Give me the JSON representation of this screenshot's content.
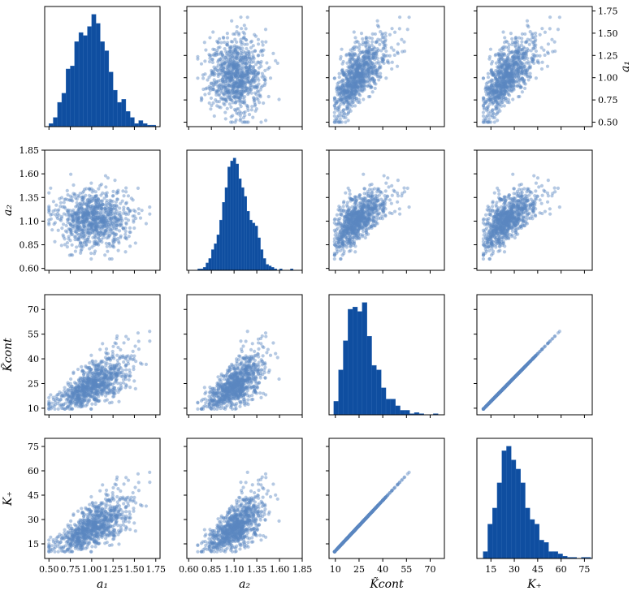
{
  "chart_data": {
    "type": "pairplot",
    "title": "",
    "variables": [
      {
        "key": "a1",
        "label": "a₁",
        "range": [
          0.45,
          1.8
        ],
        "ticks": [
          0.5,
          0.75,
          1.0,
          1.25,
          1.5,
          1.75
        ],
        "tick_labels": [
          "0.50",
          "0.75",
          "1.00",
          "1.25",
          "1.50",
          "1.75"
        ]
      },
      {
        "key": "a2",
        "label": "a₂",
        "range": [
          0.58,
          1.85
        ],
        "ticks": [
          0.6,
          0.85,
          1.1,
          1.35,
          1.6,
          1.85
        ],
        "tick_labels": [
          "0.60",
          "0.85",
          "1.10",
          "1.35",
          "1.60",
          "1.85"
        ]
      },
      {
        "key": "Kcont",
        "label": "K̃cont",
        "range": [
          6,
          79
        ],
        "ticks": [
          10,
          25,
          40,
          55,
          70
        ],
        "tick_labels": [
          "10",
          "25",
          "40",
          "55",
          "70"
        ]
      },
      {
        "key": "Kplus",
        "label": "K₊",
        "range": [
          6,
          80
        ],
        "ticks": [
          15,
          30,
          45,
          60,
          75
        ],
        "tick_labels": [
          "15",
          "30",
          "45",
          "60",
          "75"
        ]
      }
    ],
    "diag_ticks": {
      "0": {
        "ticks": [
          0.5,
          0.75,
          1.0,
          1.25,
          1.5,
          1.75
        ],
        "tick_labels": [
          "0.50",
          "0.75",
          "1.00",
          "1.25",
          "1.50",
          "1.75"
        ]
      },
      "1": {
        "ticks": [
          0.6,
          0.85,
          1.1,
          1.35,
          1.6,
          1.85
        ],
        "tick_labels": [
          "0.60",
          "0.85",
          "1.10",
          "1.35",
          "1.60",
          "1.85"
        ]
      },
      "2": {
        "ticks": [
          10,
          25,
          40,
          55,
          70
        ],
        "tick_labels": [
          "10",
          "25",
          "40",
          "55",
          "70"
        ]
      },
      "3": {
        "ticks": [
          15,
          30,
          45,
          60,
          75
        ],
        "tick_labels": [
          "15",
          "30",
          "45",
          "60",
          "75"
        ]
      }
    },
    "histograms": {
      "a1": {
        "bin_edges": [
          0.5,
          0.55,
          0.6,
          0.65,
          0.7,
          0.75,
          0.8,
          0.85,
          0.9,
          0.95,
          1.0,
          1.05,
          1.1,
          1.15,
          1.2,
          1.25,
          1.3,
          1.35,
          1.4,
          1.45,
          1.5,
          1.55,
          1.6,
          1.65,
          1.7,
          1.75
        ],
        "counts": [
          2,
          6,
          16,
          22,
          38,
          40,
          56,
          62,
          60,
          66,
          74,
          68,
          56,
          50,
          36,
          24,
          16,
          18,
          10,
          6,
          2,
          4,
          2,
          1,
          1
        ]
      },
      "a2": {
        "bin_edges": [
          0.7,
          0.73,
          0.76,
          0.79,
          0.82,
          0.85,
          0.88,
          0.91,
          0.94,
          0.97,
          1.0,
          1.03,
          1.06,
          1.09,
          1.12,
          1.15,
          1.18,
          1.21,
          1.24,
          1.27,
          1.3,
          1.33,
          1.36,
          1.39,
          1.42,
          1.45,
          1.48,
          1.51,
          1.54,
          1.57,
          1.6,
          1.63,
          1.66,
          1.69,
          1.72,
          1.75
        ],
        "counts": [
          1,
          1,
          2,
          5,
          8,
          14,
          18,
          24,
          34,
          46,
          56,
          70,
          74,
          76,
          72,
          62,
          56,
          50,
          40,
          34,
          32,
          30,
          22,
          14,
          8,
          4,
          3,
          2,
          1,
          0,
          1,
          0,
          0,
          0,
          1
        ]
      },
      "Kcont": {
        "bin_edges": [
          9,
          12,
          15,
          18,
          21,
          24,
          27,
          30,
          33,
          36,
          39,
          42,
          45,
          48,
          51,
          54,
          57,
          60,
          63,
          66,
          69,
          72,
          75,
          78
        ],
        "counts": [
          12,
          40,
          66,
          94,
          96,
          92,
          100,
          70,
          44,
          40,
          24,
          14,
          14,
          8,
          4,
          4,
          1,
          2,
          1,
          0,
          0,
          1,
          0
        ]
      },
      "Kplus": {
        "bin_edges": [
          10,
          13,
          16,
          19,
          22,
          25,
          28,
          31,
          34,
          37,
          40,
          43,
          46,
          49,
          52,
          55,
          58,
          61,
          64,
          67,
          70,
          73,
          76,
          79
        ],
        "counts": [
          6,
          30,
          44,
          66,
          94,
          98,
          86,
          78,
          66,
          44,
          34,
          30,
          16,
          14,
          6,
          6,
          4,
          2,
          1,
          1,
          0,
          1,
          1
        ]
      }
    },
    "point_style": {
      "color": "#5b88c0",
      "opacity": 0.45
    },
    "bar_color": "#0f4ea0",
    "grid": false,
    "legend": "none"
  }
}
